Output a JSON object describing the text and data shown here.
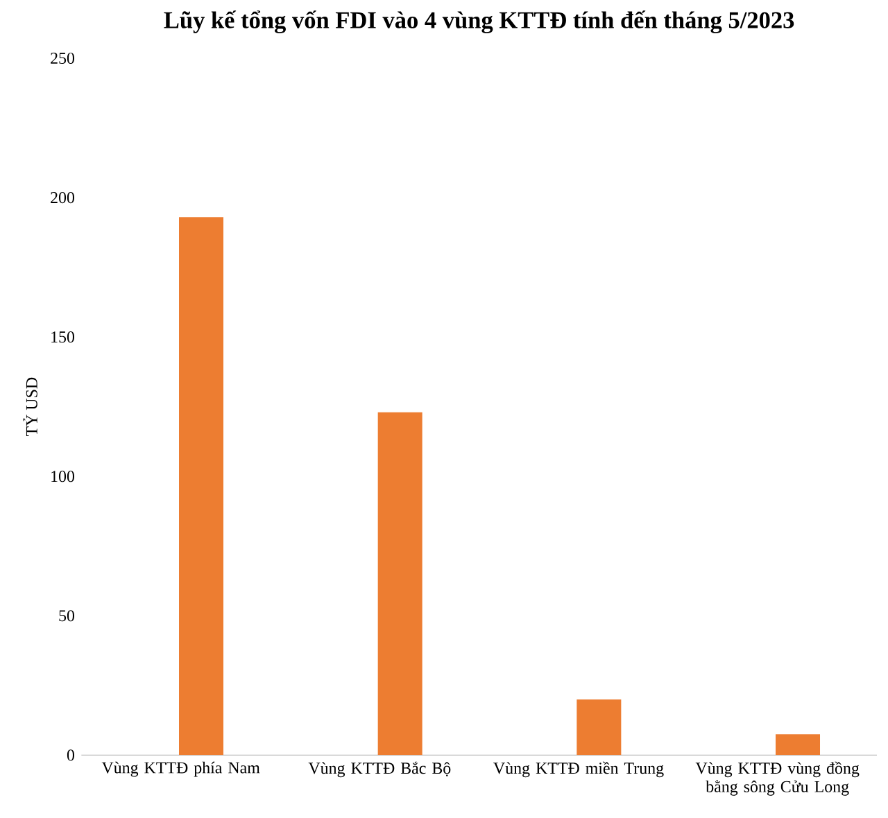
{
  "chart_data": {
    "type": "bar",
    "title": "Lũy kế tổng vốn FDI vào 4 vùng KTTĐ tính đến tháng 5/2023",
    "ylabel": "TỶ USD",
    "categories": [
      "Vùng KTTĐ phía Nam",
      "Vùng KTTĐ Bắc Bộ",
      "Vùng KTTĐ miền Trung",
      "Vùng KTTĐ vùng đồng bằng sông Cửu Long"
    ],
    "values": [
      193,
      123,
      20,
      7.5
    ],
    "color": "#ed7d31",
    "ylim": [
      0,
      250
    ],
    "yticks": [
      0,
      50,
      100,
      150,
      200,
      250
    ]
  }
}
